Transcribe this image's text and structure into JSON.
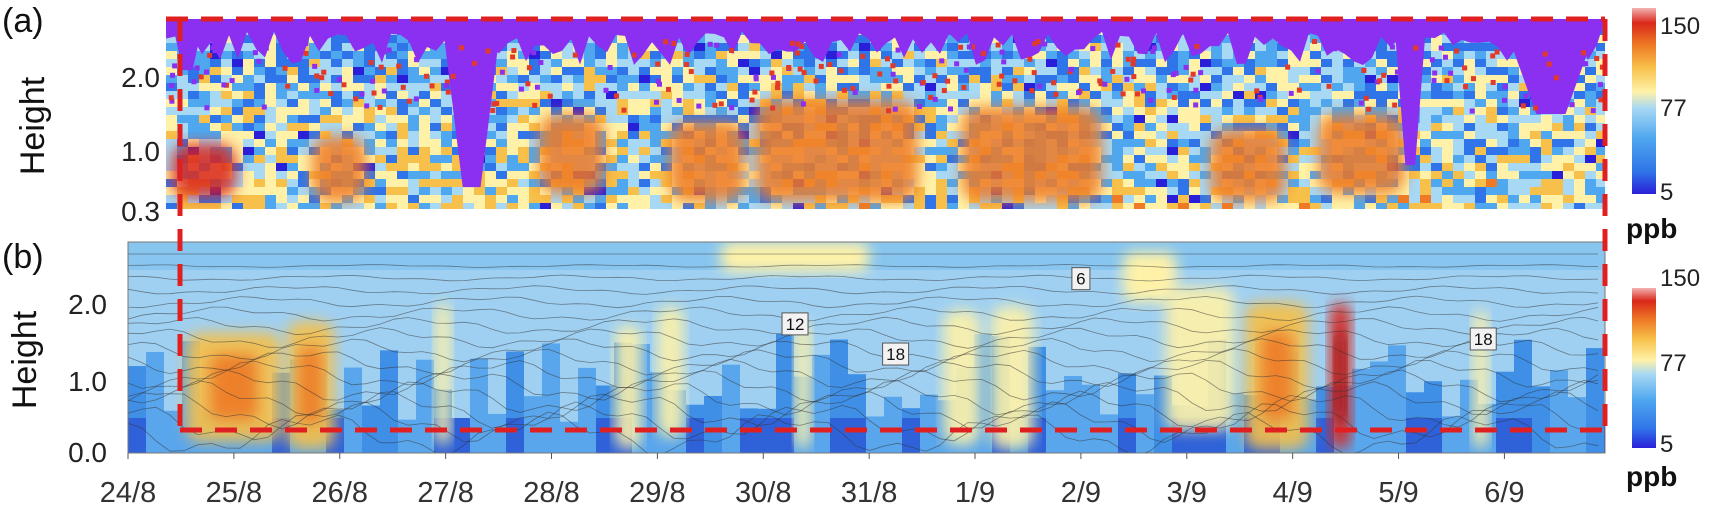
{
  "chart_data": [
    {
      "panel": "(a)",
      "type": "heatmap",
      "ylabel": "Height",
      "y_ticks": [
        "0.3",
        "1.0",
        "2.0"
      ],
      "y_range": [
        0.3,
        2.9
      ],
      "x_range": [
        24.65,
        37.95
      ],
      "colorbar": {
        "unit": "ppb",
        "ticks": [
          "5",
          "77",
          "150"
        ],
        "range": [
          5,
          150
        ]
      },
      "colors": [
        "#2a1fd8",
        "#2f74e8",
        "#4fa7ef",
        "#a7d8f4",
        "#fff2a8",
        "#f7c04a",
        "#ee7a25",
        "#d9281a",
        "#9e0f0f"
      ],
      "mask_color": "#8b2ff0",
      "hot_regions": [
        {
          "x": [
            24.7,
            25.3
          ],
          "y": [
            0.45,
            1.2
          ],
          "value": 130
        },
        {
          "x": [
            26.0,
            26.5
          ],
          "y": [
            0.4,
            1.3
          ],
          "value": 110
        },
        {
          "x": [
            28.1,
            28.7
          ],
          "y": [
            0.5,
            1.6
          ],
          "value": 105
        },
        {
          "x": [
            29.3,
            30.0
          ],
          "y": [
            0.4,
            1.5
          ],
          "value": 115
        },
        {
          "x": [
            30.1,
            31.6
          ],
          "y": [
            0.4,
            1.8
          ],
          "value": 110
        },
        {
          "x": [
            32.0,
            33.3
          ],
          "y": [
            0.4,
            1.7
          ],
          "value": 105
        },
        {
          "x": [
            34.3,
            35.0
          ],
          "y": [
            0.4,
            1.4
          ],
          "value": 110
        },
        {
          "x": [
            35.3,
            36.1
          ],
          "y": [
            0.5,
            1.6
          ],
          "value": 105
        }
      ],
      "masked_regions": [
        {
          "x": [
            27.2,
            27.75
          ],
          "bottom": 0.6
        },
        {
          "x": [
            24.7,
            25.0
          ],
          "bottom": 2.2
        },
        {
          "x": [
            36.0,
            36.3
          ],
          "bottom": 0.9
        },
        {
          "x": [
            37.0,
            37.9
          ],
          "bottom": 1.6
        }
      ]
    },
    {
      "panel": "(b)",
      "type": "heatmap",
      "ylabel": "Height",
      "y_ticks": [
        "0.0",
        "1.0",
        "2.0"
      ],
      "y_range": [
        0.0,
        2.8
      ],
      "x_ticks": [
        "24/8",
        "25/8",
        "26/8",
        "27/8",
        "28/8",
        "29/8",
        "30/8",
        "31/8",
        "1/9",
        "2/9",
        "3/9",
        "4/9",
        "5/9",
        "6/9"
      ],
      "x_range": [
        24.0,
        37.95
      ],
      "colorbar": {
        "unit": "ppb",
        "ticks": [
          "5",
          "77",
          "150"
        ],
        "range": [
          5,
          150
        ]
      },
      "contour_labels": [
        {
          "text": "6",
          "x": 33.0,
          "y": 2.3
        },
        {
          "text": "12",
          "x": 30.3,
          "y": 1.7
        },
        {
          "text": "18",
          "x": 31.25,
          "y": 1.3
        },
        {
          "text": "18",
          "x": 36.8,
          "y": 1.5
        }
      ],
      "hot_regions": [
        {
          "x": [
            24.55,
            25.45
          ],
          "y": [
            0.15,
            1.6
          ],
          "value": 95
        },
        {
          "x": [
            25.5,
            25.95
          ],
          "y": [
            0.05,
            1.75
          ],
          "value": 95
        },
        {
          "x": [
            29.0,
            29.25
          ],
          "y": [
            0.2,
            1.95
          ],
          "value": 82
        },
        {
          "x": [
            32.15,
            32.55
          ],
          "y": [
            0.05,
            1.95
          ],
          "value": 82
        },
        {
          "x": [
            34.55,
            35.15
          ],
          "y": [
            0.05,
            2.0
          ],
          "value": 100
        },
        {
          "x": [
            35.35,
            35.55
          ],
          "y": [
            0.05,
            2.0
          ],
          "value": 130
        },
        {
          "x": [
            33.8,
            34.45
          ],
          "y": [
            0.3,
            2.2
          ],
          "value": 80
        },
        {
          "x": [
            31.7,
            32.05
          ],
          "y": [
            0.1,
            1.9
          ],
          "value": 80
        },
        {
          "x": [
            26.9,
            27.05
          ],
          "y": [
            0.1,
            2.0
          ],
          "value": 82
        },
        {
          "x": [
            28.6,
            28.85
          ],
          "y": [
            0.05,
            1.7
          ],
          "value": 80
        },
        {
          "x": [
            30.3,
            30.45
          ],
          "y": [
            0.05,
            1.75
          ],
          "value": 80
        },
        {
          "x": [
            36.7,
            36.85
          ],
          "y": [
            0.05,
            1.9
          ],
          "value": 85
        }
      ]
    }
  ]
}
